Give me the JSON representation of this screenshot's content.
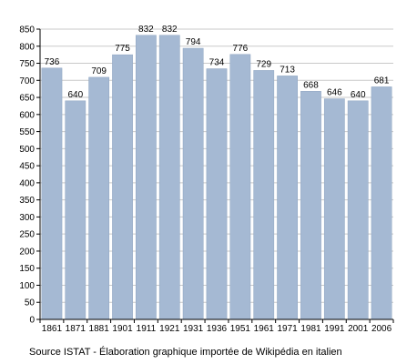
{
  "chart_data": {
    "type": "bar",
    "categories": [
      "1861",
      "1871",
      "1881",
      "1901",
      "1911",
      "1921",
      "1931",
      "1936",
      "1951",
      "1961",
      "1971",
      "1981",
      "1991",
      "2001",
      "2006"
    ],
    "values": [
      736,
      640,
      709,
      775,
      832,
      832,
      794,
      734,
      776,
      729,
      713,
      668,
      646,
      640,
      681
    ],
    "ylim": [
      0,
      850
    ],
    "yticks": [
      0,
      50,
      100,
      150,
      200,
      250,
      300,
      350,
      400,
      450,
      500,
      550,
      600,
      650,
      700,
      750,
      800,
      850
    ],
    "grid": true,
    "bar_color": "#a5b9d3",
    "bar_edge_color": "#8ea4c0",
    "grid_color": "#c9c9c9"
  },
  "source_note": "Source ISTAT - Élaboration graphique importée de Wikipédia en italien"
}
